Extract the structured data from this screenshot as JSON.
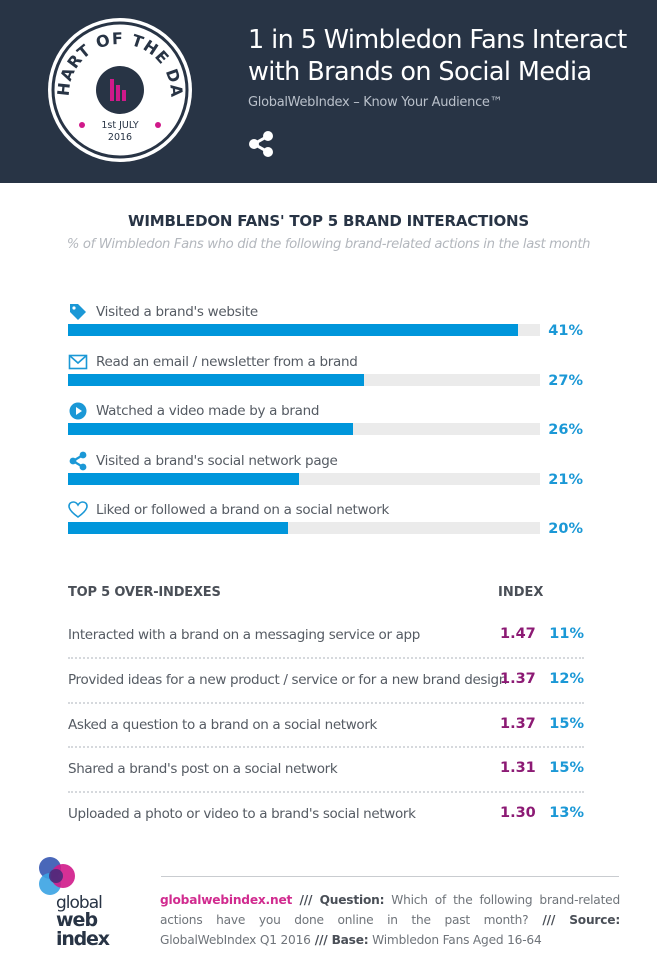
{
  "header": {
    "badge": {
      "arc_text": "CHART OF THE DAY",
      "date_line1": "1st JULY",
      "date_line2": "2016"
    },
    "title_line1": "1 in 5 Wimbledon Fans Interact",
    "title_line2": "with Brands on Social Media",
    "tagline": "GlobalWebIndex – Know Your Audience™",
    "share_icon": "share-icon"
  },
  "colors": {
    "header_bg": "#283445",
    "bar_fill": "#0096db",
    "bar_track": "#ebebeb",
    "percent_text": "#1b98d6",
    "index_text": "#8c1a74",
    "brand_pink": "#d12b8f"
  },
  "chart_data": {
    "type": "bar",
    "orientation": "horizontal",
    "title": "WIMBLEDON FANS' TOP 5 BRAND INTERACTIONS",
    "subtitle": "% of Wimbledon Fans who did the following brand-related actions in the last month",
    "xlim": [
      0,
      43
    ],
    "categories": [
      "Visited a brand's website",
      "Read an email / newsletter from a brand",
      "Watched a video made by a brand",
      "Visited a brand's social network page",
      "Liked or followed a brand on a social network"
    ],
    "icons": [
      "tag-icon",
      "envelope-icon",
      "play-icon",
      "share-icon",
      "heart-icon"
    ],
    "values": [
      41,
      27,
      26,
      21,
      20
    ],
    "value_labels": [
      "41%",
      "27%",
      "26%",
      "21%",
      "20%"
    ],
    "unit": "%"
  },
  "overindexes": {
    "heading": "TOP 5 OVER-INDEXES",
    "index_heading": "INDEX",
    "rows": [
      {
        "label": "Interacted with a brand on a messaging service or app",
        "index": "1.47",
        "pct": "11%"
      },
      {
        "label": "Provided ideas for a new product / service or for a new brand design",
        "index": "1.37",
        "pct": "12%"
      },
      {
        "label": "Asked a question to a brand on a social network",
        "index": "1.37",
        "pct": "15%"
      },
      {
        "label": "Shared a brand's post on a social network",
        "index": "1.31",
        "pct": "15%"
      },
      {
        "label": "Uploaded a photo or video to a brand's social network",
        "index": "1.30",
        "pct": "13%"
      }
    ]
  },
  "footer": {
    "logo_line1": "global",
    "logo_line2": "web",
    "logo_line3": "index",
    "site": "globalwebindex.net",
    "sep1": " /// ",
    "question_label": "Question:",
    "question_text": " Which of the following brand-related actions have you done online in the past month?",
    "sep2": " /// ",
    "source_label": "Source:",
    "source_text": " GlobalWebIndex Q1 2016",
    "sep3": " /// ",
    "base_label": "Base:",
    "base_text": " Wimbledon Fans Aged 16-64"
  }
}
